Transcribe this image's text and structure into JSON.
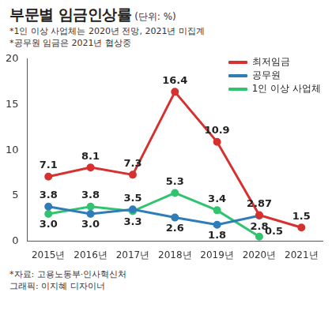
{
  "chart_data": {
    "type": "line",
    "title": "부문별 임금인상률",
    "subtitle": "(단위: %)",
    "annotations": [
      "*1인 이상 사업체는 2020년 전망, 2021년 미집계",
      "*공무원 임금은 2021년 협상중"
    ],
    "source": "*자료: 고용노동부·인사혁신처",
    "credit": "그래픽: 이지혜 디자이너",
    "categories": [
      "2015년",
      "2016년",
      "2017년",
      "2018년",
      "2019년",
      "2020년",
      "2021년"
    ],
    "series": [
      {
        "name": "최저임금",
        "color": "#d6312f",
        "marker": "circle",
        "line_style": "solid",
        "values": [
          7.1,
          8.1,
          7.3,
          16.4,
          10.9,
          2.87,
          1.5
        ],
        "value_labels": [
          "7.1",
          "8.1",
          "7.3",
          "16.4",
          "10.9",
          "2.87",
          "1.5"
        ]
      },
      {
        "name": "공무원",
        "color": "#2f7db8",
        "marker": "circle",
        "line_style": "solid",
        "values": [
          3.8,
          3.0,
          3.5,
          2.6,
          1.8,
          2.8,
          null
        ],
        "value_labels": [
          "3.8",
          "3.0",
          "3.5",
          "2.6",
          "1.8",
          "2.8",
          null
        ]
      },
      {
        "name": "1인 이상 사업체",
        "color": "#2fc46e",
        "marker": "circle",
        "line_style": "solid",
        "values": [
          3.0,
          3.8,
          3.3,
          5.3,
          3.4,
          0.5,
          null
        ],
        "value_labels": [
          "3.0",
          "3.8",
          "3.3",
          "5.3",
          "3.4",
          "0.5",
          null
        ]
      }
    ],
    "ylim": [
      0,
      20
    ],
    "yticks": [
      0,
      5,
      10,
      15,
      20
    ],
    "grid": false,
    "legend": "top-right",
    "data_labels": true
  }
}
